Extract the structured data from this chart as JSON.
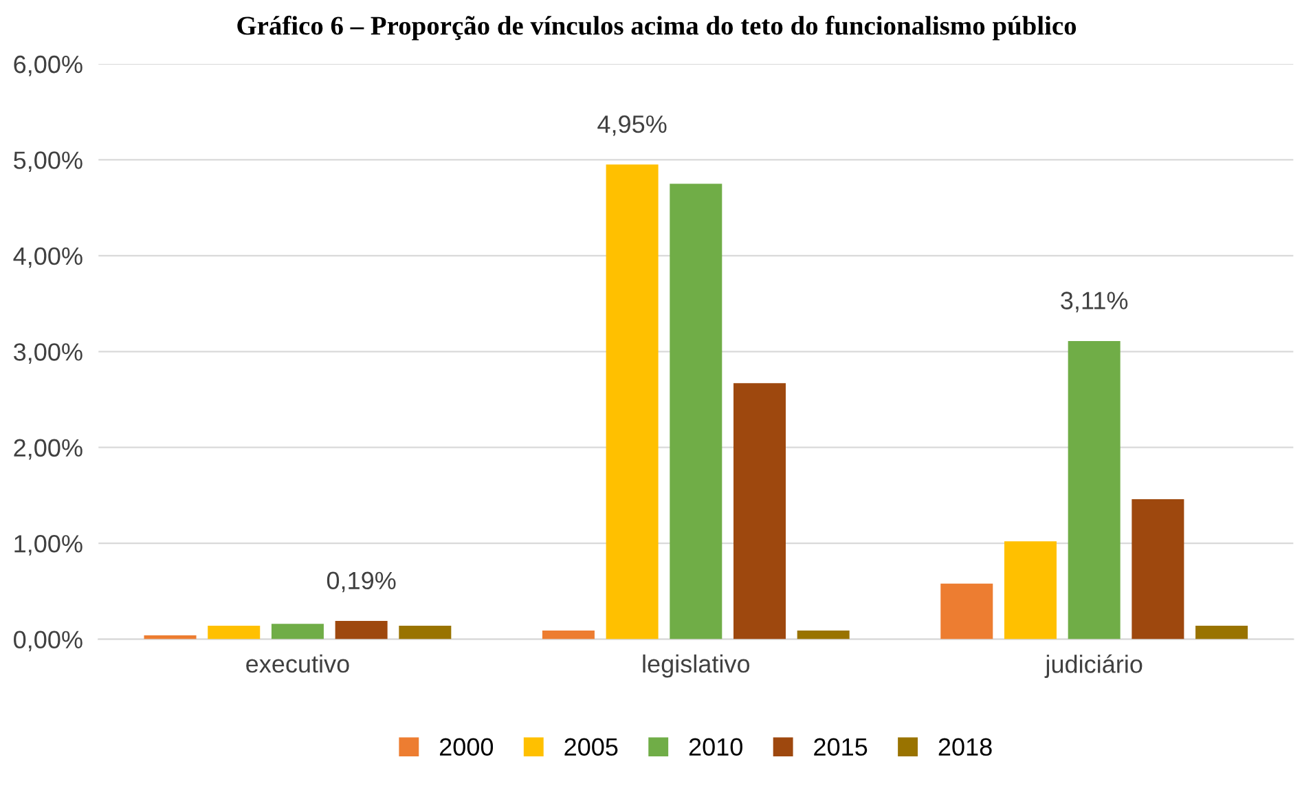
{
  "chart_data": {
    "type": "bar",
    "title": "Gráfico 6 – Proporção de vínculos acima do teto do funcionalismo público",
    "categories": [
      "executivo",
      "legislativo",
      "judiciário"
    ],
    "series": [
      {
        "name": "2000",
        "color": "#ed7d31",
        "values": [
          0.04,
          0.09,
          0.58
        ]
      },
      {
        "name": "2005",
        "color": "#ffc000",
        "values": [
          0.14,
          4.95,
          1.02
        ],
        "value_labels": [
          null,
          "4,95%",
          null
        ]
      },
      {
        "name": "2010",
        "color": "#70ad47",
        "values": [
          0.16,
          4.75,
          3.11
        ],
        "value_labels": [
          null,
          null,
          "3,11%"
        ]
      },
      {
        "name": "2015",
        "color": "#9e480e",
        "values": [
          0.19,
          2.67,
          1.46
        ],
        "value_labels": [
          "0,19%",
          null,
          null
        ]
      },
      {
        "name": "2018",
        "color": "#997300",
        "values": [
          0.14,
          0.09,
          0.14
        ]
      }
    ],
    "ylim": [
      0,
      6
    ],
    "yticks": [
      {
        "value": 0,
        "label": "0,00%"
      },
      {
        "value": 1,
        "label": "1,00%"
      },
      {
        "value": 2,
        "label": "2,00%"
      },
      {
        "value": 3,
        "label": "3,00%"
      },
      {
        "value": 4,
        "label": "4,00%"
      },
      {
        "value": 5,
        "label": "5,00%"
      },
      {
        "value": 6,
        "label": "6,00%"
      }
    ],
    "grid": "y",
    "legend": "bottom"
  }
}
